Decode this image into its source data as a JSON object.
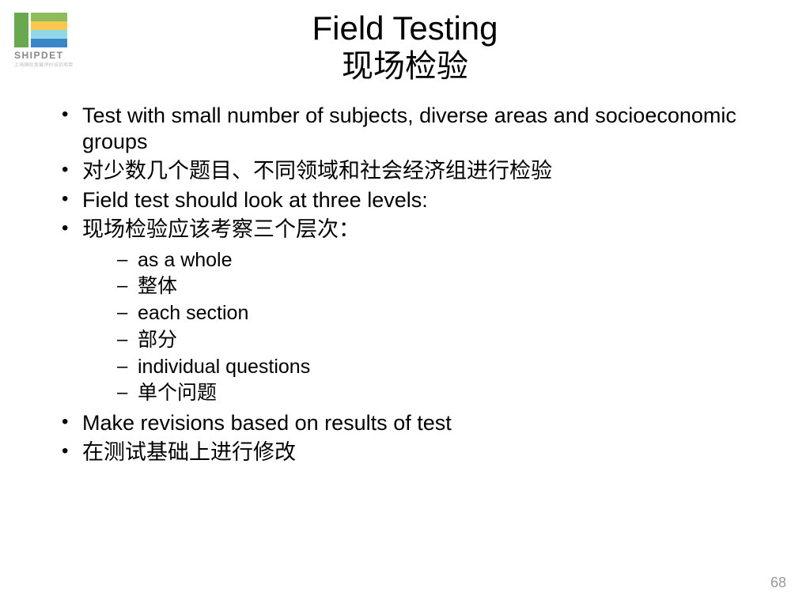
{
  "logo": {
    "name": "SHIPDET",
    "subtitle": "上海国际发展评价培训项目",
    "bar_left_color": "#6aa84f",
    "bar_right_colors": [
      "#8fbc5a",
      "#f9c74f",
      "#90d7e7",
      "#3a86c8"
    ]
  },
  "title": {
    "en": "Field Testing",
    "zh": "现场检验"
  },
  "bullets": [
    {
      "text": "Test with small number of subjects, diverse areas and socioeconomic groups"
    },
    {
      "text": "对少数几个题目、不同领域和社会经济组进行检验"
    },
    {
      "text": "Field test should look at three levels:"
    },
    {
      "text": "现场检验应该考察三个层次：",
      "children": [
        {
          "text": "as a whole"
        },
        {
          "text": "整体"
        },
        {
          "text": "each section"
        },
        {
          "text": "部分"
        },
        {
          "text": "individual questions"
        },
        {
          "text": "单个问题"
        }
      ]
    },
    {
      "text": "Make revisions based on results of test"
    },
    {
      "text": "在测试基础上进行修改"
    }
  ],
  "page_number": "68",
  "colors": {
    "background": "#ffffff",
    "text": "#000000",
    "page_num": "#9a9a9a"
  }
}
